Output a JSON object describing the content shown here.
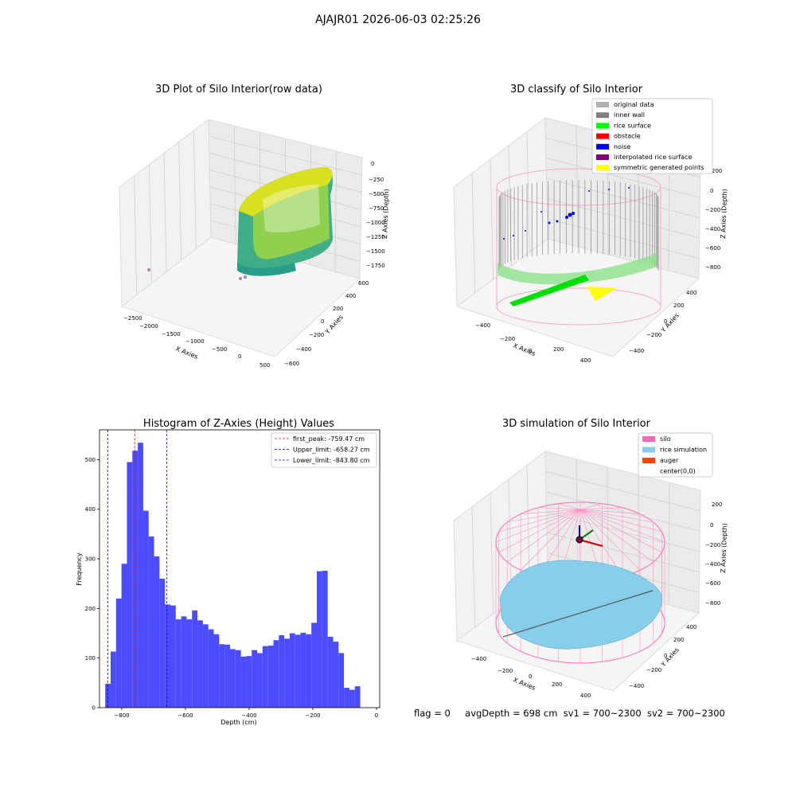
{
  "figure": {
    "suptitle": "AJAJR01 2026-06-03 02:25:26",
    "footer": {
      "flag": "flag = 0",
      "avg_depth": "avgDepth = 698 cm",
      "sv1": "sv1 = 700~2300",
      "sv2": "sv2 = 700~2300"
    }
  },
  "plot_raw": {
    "title": "3D Plot of Silo Interior(row data)",
    "xlabel": "X Axies",
    "ylabel": "Y Axies",
    "zlabel": "Z Axies (Depth)",
    "xticks": [
      "−2500",
      "−2000",
      "−1500",
      "−1000",
      "−500",
      "0",
      "500"
    ],
    "yticks": [
      "−600",
      "−400",
      "−200",
      "0",
      "200",
      "400",
      "600"
    ],
    "zticks": [
      "0",
      "−250",
      "−500",
      "−750",
      "−1000",
      "−1250",
      "−1500",
      "−1750"
    ]
  },
  "plot_classify": {
    "title": "3D classify of Silo Interior",
    "xlabel": "X Axies",
    "ylabel": "Y Axies",
    "zlabel": "Z Axies (Depth)",
    "xticks": [
      "−400",
      "−200",
      "0",
      "200",
      "400"
    ],
    "yticks": [
      "−400",
      "−200",
      "0",
      "200",
      "400"
    ],
    "zticks": [
      "200",
      "0",
      "−200",
      "−400",
      "−600",
      "−800"
    ],
    "legend": [
      {
        "label": "original data",
        "color": "#b0b0b0"
      },
      {
        "label": "inner wall",
        "color": "#808080"
      },
      {
        "label": "rice surface",
        "color": "#00ff00"
      },
      {
        "label": "obstacle",
        "color": "#ff0000"
      },
      {
        "label": "noise",
        "color": "#0000ff"
      },
      {
        "label": "interpolated rice surface",
        "color": "#800080"
      },
      {
        "label": "symmetric generated points",
        "color": "#ffff00"
      }
    ]
  },
  "plot_sim": {
    "title": "3D simulation of Silo Interior",
    "xlabel": "X Axies",
    "ylabel": "Y Axies",
    "zlabel": "Z Axies (Depth)",
    "xticks": [
      "−400",
      "−200",
      "0",
      "200",
      "400"
    ],
    "yticks": [
      "−400",
      "−200",
      "0",
      "200",
      "400"
    ],
    "zticks": [
      "200",
      "0",
      "−200",
      "−400",
      "−600",
      "−800"
    ],
    "legend": [
      {
        "label": "silo",
        "color": "#ff69b4"
      },
      {
        "label": "rice simulation",
        "color": "#87ceeb"
      },
      {
        "label": "auger",
        "color": "#ff4500"
      },
      {
        "label": "center(0,0)",
        "color": "#ffffff"
      }
    ]
  },
  "chart_data": {
    "type": "bar",
    "title": "Histogram of Z-Axies (Height) Values",
    "xlabel": "Depth (cm)",
    "ylabel": "Frequency",
    "xlim": [
      -870,
      10
    ],
    "ylim": [
      0,
      560
    ],
    "xticks": [
      -800,
      -600,
      -400,
      -200,
      0
    ],
    "yticks": [
      0,
      100,
      200,
      300,
      400,
      500
    ],
    "bar_color": "#4b4bff",
    "bin_start": -852,
    "bin_width": 17.04,
    "values": [
      48,
      113,
      220,
      290,
      495,
      518,
      534,
      397,
      345,
      305,
      260,
      208,
      206,
      178,
      184,
      178,
      196,
      176,
      168,
      158,
      148,
      128,
      127,
      118,
      116,
      103,
      104,
      116,
      110,
      124,
      125,
      136,
      146,
      139,
      150,
      147,
      151,
      148,
      171,
      275,
      276,
      143,
      133,
      110,
      40,
      36,
      43
    ],
    "lines": [
      {
        "label": "first_peak: -759.47 cm",
        "x": -759.47,
        "color": "#ff0000"
      },
      {
        "label": "Upper_limit: -658.27 cm",
        "x": -658.27,
        "color": "#0000cc"
      },
      {
        "label": "Lower_limit: -843.80 cm",
        "x": -843.8,
        "color": "#0000cc"
      }
    ]
  }
}
